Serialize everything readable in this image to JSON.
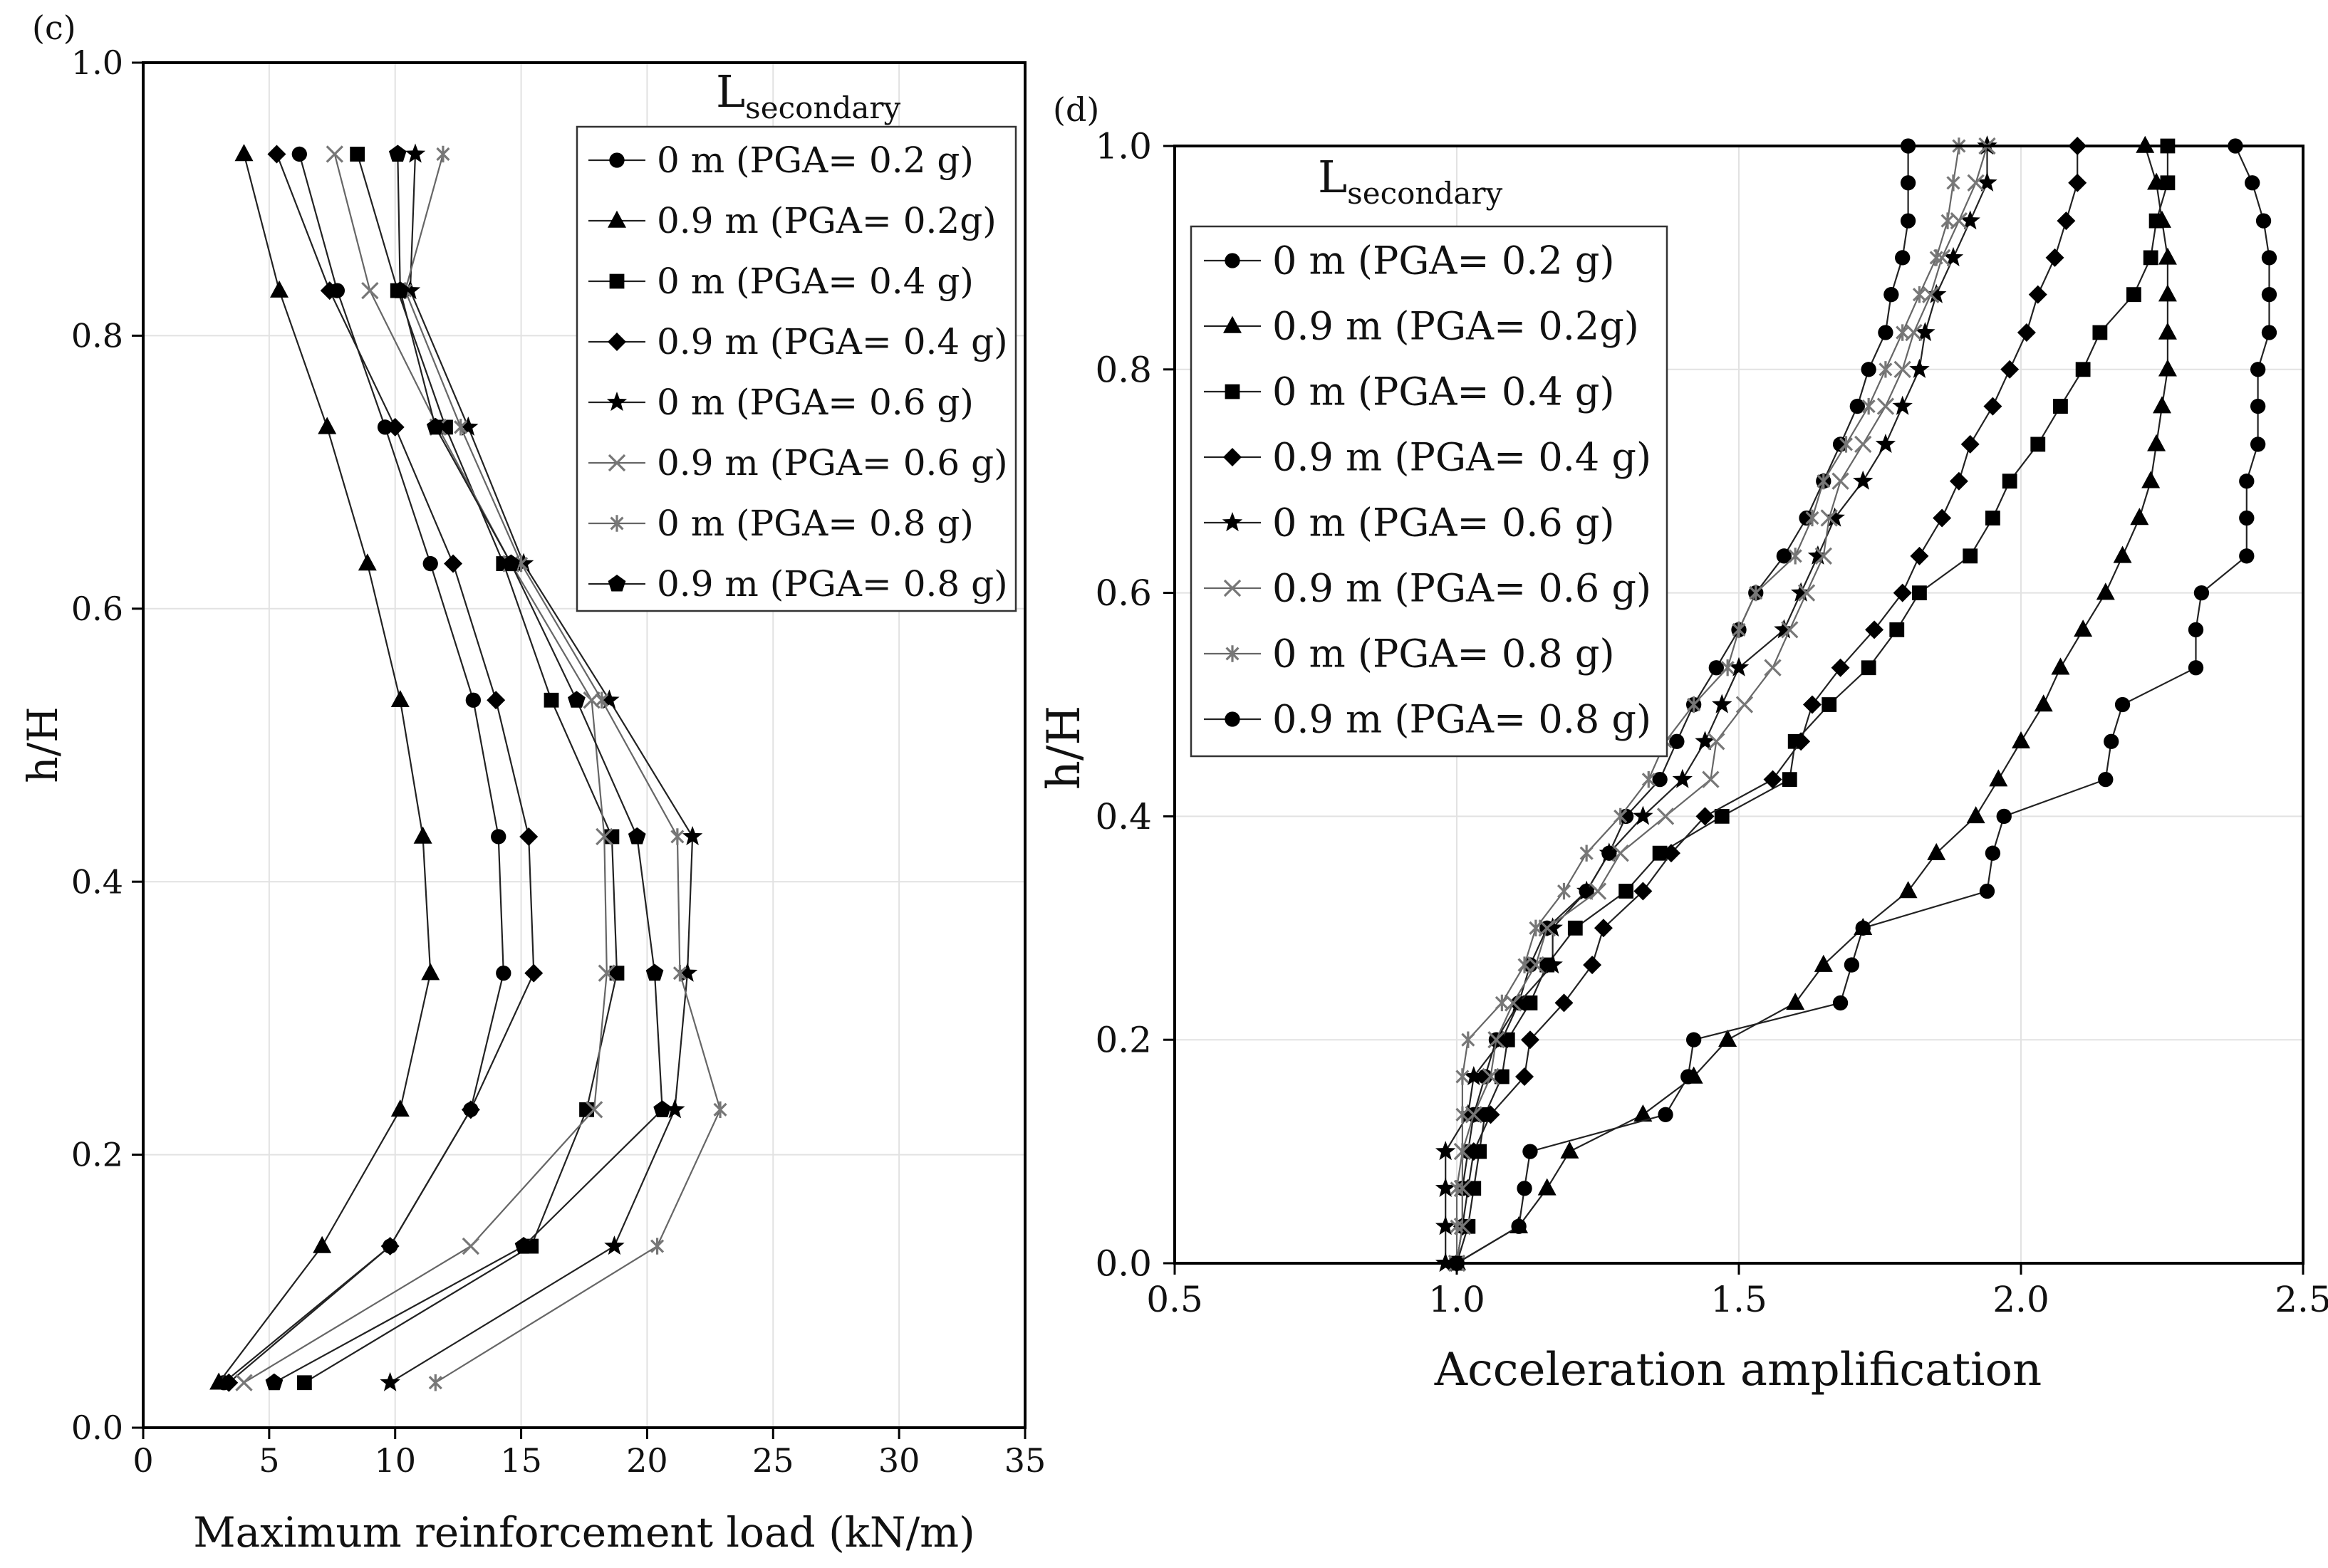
{
  "chart_data": [
    {
      "panel_label": "(c)",
      "type": "line",
      "xlabel": "Maximum reinforcement load (kN/m)",
      "ylabel": "h/H",
      "xlim": [
        0,
        35
      ],
      "ylim": [
        0.0,
        1.0
      ],
      "xticks": [
        0,
        5,
        10,
        15,
        20,
        25,
        30,
        35
      ],
      "yticks": [
        0.0,
        0.2,
        0.4,
        0.6,
        0.8,
        1.0
      ],
      "xtick_labels": [
        "0",
        "5",
        "10",
        "15",
        "20",
        "25",
        "30",
        "35"
      ],
      "ytick_labels": [
        "0.0",
        "0.2",
        "0.4",
        "0.6",
        "0.8",
        "1.0"
      ],
      "grid": true,
      "legend_title_main": "L",
      "legend_title_sub": "secondary",
      "legend_position": "top-right",
      "y": [
        0.933,
        0.833,
        0.733,
        0.633,
        0.533,
        0.433,
        0.333,
        0.233,
        0.133,
        0.033
      ],
      "series": [
        {
          "name": "0 m (PGA= 0.2 g)",
          "marker": "circle",
          "x": [
            6.2,
            7.7,
            9.6,
            11.4,
            13.1,
            14.1,
            14.3,
            13.0,
            9.8,
            3.2
          ]
        },
        {
          "name": "0.9 m (PGA= 0.2g)",
          "marker": "triangle",
          "x": [
            4.0,
            5.4,
            7.3,
            8.9,
            10.2,
            11.1,
            11.4,
            10.2,
            7.1,
            3.0
          ]
        },
        {
          "name": "0 m (PGA= 0.4 g)",
          "marker": "square",
          "x": [
            8.5,
            10.1,
            12.0,
            14.3,
            16.2,
            18.6,
            18.8,
            17.6,
            15.4,
            6.4
          ]
        },
        {
          "name": "0.9 m (PGA= 0.4 g)",
          "marker": "diamond",
          "x": [
            5.3,
            7.4,
            10.0,
            12.3,
            14.0,
            15.3,
            15.5,
            13.0,
            9.8,
            3.4
          ]
        },
        {
          "name": "0 m (PGA= 0.6 g)",
          "marker": "star",
          "x": [
            10.8,
            10.6,
            12.9,
            15.1,
            18.5,
            21.8,
            21.6,
            21.1,
            18.7,
            9.8
          ]
        },
        {
          "name": "0.9 m (PGA= 0.6 g)",
          "marker": "x",
          "x": [
            7.6,
            9.0,
            11.7,
            14.6,
            17.8,
            18.3,
            18.4,
            17.9,
            13.0,
            4.0
          ]
        },
        {
          "name": "0 m (PGA= 0.8 g)",
          "marker": "asterisk",
          "x": [
            11.9,
            10.4,
            12.6,
            15.0,
            18.2,
            21.2,
            21.3,
            22.9,
            20.4,
            11.6
          ]
        },
        {
          "name": "0.9 m (PGA= 0.8 g)",
          "marker": "pentagon",
          "x": [
            10.1,
            10.2,
            11.6,
            14.6,
            17.2,
            19.6,
            20.3,
            20.6,
            15.1,
            5.2
          ]
        }
      ]
    },
    {
      "panel_label": "(d)",
      "type": "line",
      "xlabel": "Acceleration amplification",
      "ylabel": "h/H",
      "xlim": [
        0.5,
        2.5
      ],
      "ylim": [
        0.0,
        1.0
      ],
      "xticks": [
        0.5,
        1.0,
        1.5,
        2.0,
        2.5
      ],
      "yticks": [
        0.0,
        0.2,
        0.4,
        0.6,
        0.8,
        1.0
      ],
      "xtick_labels": [
        "0.5",
        "1.0",
        "1.5",
        "2.0",
        "2.5"
      ],
      "ytick_labels": [
        "0.0",
        "0.2",
        "0.4",
        "0.6",
        "0.8",
        "1.0"
      ],
      "grid": true,
      "legend_title_main": "L",
      "legend_title_sub": "secondary",
      "legend_position": "top-left",
      "y": [
        0.0,
        0.033,
        0.067,
        0.1,
        0.133,
        0.167,
        0.2,
        0.233,
        0.267,
        0.3,
        0.333,
        0.367,
        0.4,
        0.433,
        0.467,
        0.5,
        0.533,
        0.567,
        0.6,
        0.633,
        0.667,
        0.7,
        0.733,
        0.767,
        0.8,
        0.833,
        0.867,
        0.9,
        0.933,
        0.967,
        1.0
      ],
      "series": [
        {
          "name": "0 m (PGA= 0.2 g)",
          "marker": "circle",
          "x": [
            1.0,
            1.01,
            1.01,
            1.02,
            1.03,
            1.05,
            1.07,
            1.11,
            1.13,
            1.16,
            1.23,
            1.27,
            1.3,
            1.36,
            1.39,
            1.42,
            1.46,
            1.5,
            1.53,
            1.58,
            1.62,
            1.65,
            1.68,
            1.71,
            1.73,
            1.76,
            1.77,
            1.79,
            1.8,
            1.8,
            1.8
          ]
        },
        {
          "name": "0.9 m (PGA= 0.2g)",
          "marker": "triangle",
          "x": [
            1.0,
            1.11,
            1.16,
            1.2,
            1.33,
            1.42,
            1.48,
            1.6,
            1.65,
            1.72,
            1.8,
            1.85,
            1.92,
            1.96,
            2.0,
            2.04,
            2.07,
            2.11,
            2.15,
            2.18,
            2.21,
            2.23,
            2.24,
            2.25,
            2.26,
            2.26,
            2.26,
            2.26,
            2.25,
            2.24,
            2.22
          ]
        },
        {
          "name": "0 m (PGA= 0.4 g)",
          "marker": "square",
          "x": [
            1.0,
            1.02,
            1.03,
            1.04,
            1.05,
            1.08,
            1.09,
            1.13,
            1.16,
            1.21,
            1.3,
            1.36,
            1.47,
            1.59,
            1.6,
            1.66,
            1.73,
            1.78,
            1.82,
            1.91,
            1.95,
            1.98,
            2.03,
            2.07,
            2.11,
            2.14,
            2.2,
            2.23,
            2.24,
            2.26,
            2.26
          ]
        },
        {
          "name": "0.9 m (PGA= 0.4 g)",
          "marker": "diamond",
          "x": [
            1.0,
            1.01,
            1.02,
            1.03,
            1.06,
            1.12,
            1.13,
            1.19,
            1.24,
            1.26,
            1.33,
            1.38,
            1.44,
            1.56,
            1.61,
            1.63,
            1.68,
            1.74,
            1.79,
            1.82,
            1.86,
            1.89,
            1.91,
            1.95,
            1.98,
            2.01,
            2.03,
            2.06,
            2.08,
            2.1,
            2.1
          ]
        },
        {
          "name": "0 m (PGA= 0.6 g)",
          "marker": "star",
          "x": [
            0.98,
            0.98,
            0.98,
            0.98,
            1.02,
            1.03,
            1.08,
            1.11,
            1.17,
            1.17,
            1.23,
            1.27,
            1.33,
            1.4,
            1.44,
            1.47,
            1.5,
            1.58,
            1.61,
            1.64,
            1.67,
            1.72,
            1.76,
            1.79,
            1.82,
            1.83,
            1.85,
            1.88,
            1.91,
            1.94,
            1.94
          ]
        },
        {
          "name": "0.9 m (PGA= 0.6 g)",
          "marker": "x",
          "x": [
            1.0,
            1.01,
            1.01,
            1.01,
            1.03,
            1.06,
            1.07,
            1.1,
            1.14,
            1.16,
            1.25,
            1.29,
            1.37,
            1.45,
            1.46,
            1.51,
            1.56,
            1.59,
            1.62,
            1.65,
            1.66,
            1.68,
            1.72,
            1.76,
            1.79,
            1.81,
            1.84,
            1.86,
            1.89,
            1.92,
            1.94
          ]
        },
        {
          "name": "0 m (PGA= 0.8 g)",
          "marker": "asterisk",
          "x": [
            1.0,
            1.0,
            1.0,
            1.01,
            1.01,
            1.01,
            1.02,
            1.08,
            1.12,
            1.14,
            1.19,
            1.23,
            1.29,
            1.34,
            1.37,
            1.42,
            1.48,
            1.5,
            1.53,
            1.6,
            1.63,
            1.65,
            1.69,
            1.73,
            1.76,
            1.79,
            1.82,
            1.85,
            1.87,
            1.88,
            1.89
          ]
        },
        {
          "name": "0.9 m (PGA= 0.8 g)",
          "marker": "circle",
          "x": [
            1.0,
            1.11,
            1.12,
            1.13,
            1.37,
            1.41,
            1.42,
            1.68,
            1.7,
            1.72,
            1.94,
            1.95,
            1.97,
            2.15,
            2.16,
            2.18,
            2.31,
            2.31,
            2.32,
            2.4,
            2.4,
            2.4,
            2.42,
            2.42,
            2.42,
            2.44,
            2.44,
            2.44,
            2.43,
            2.41,
            2.38
          ]
        }
      ]
    }
  ]
}
